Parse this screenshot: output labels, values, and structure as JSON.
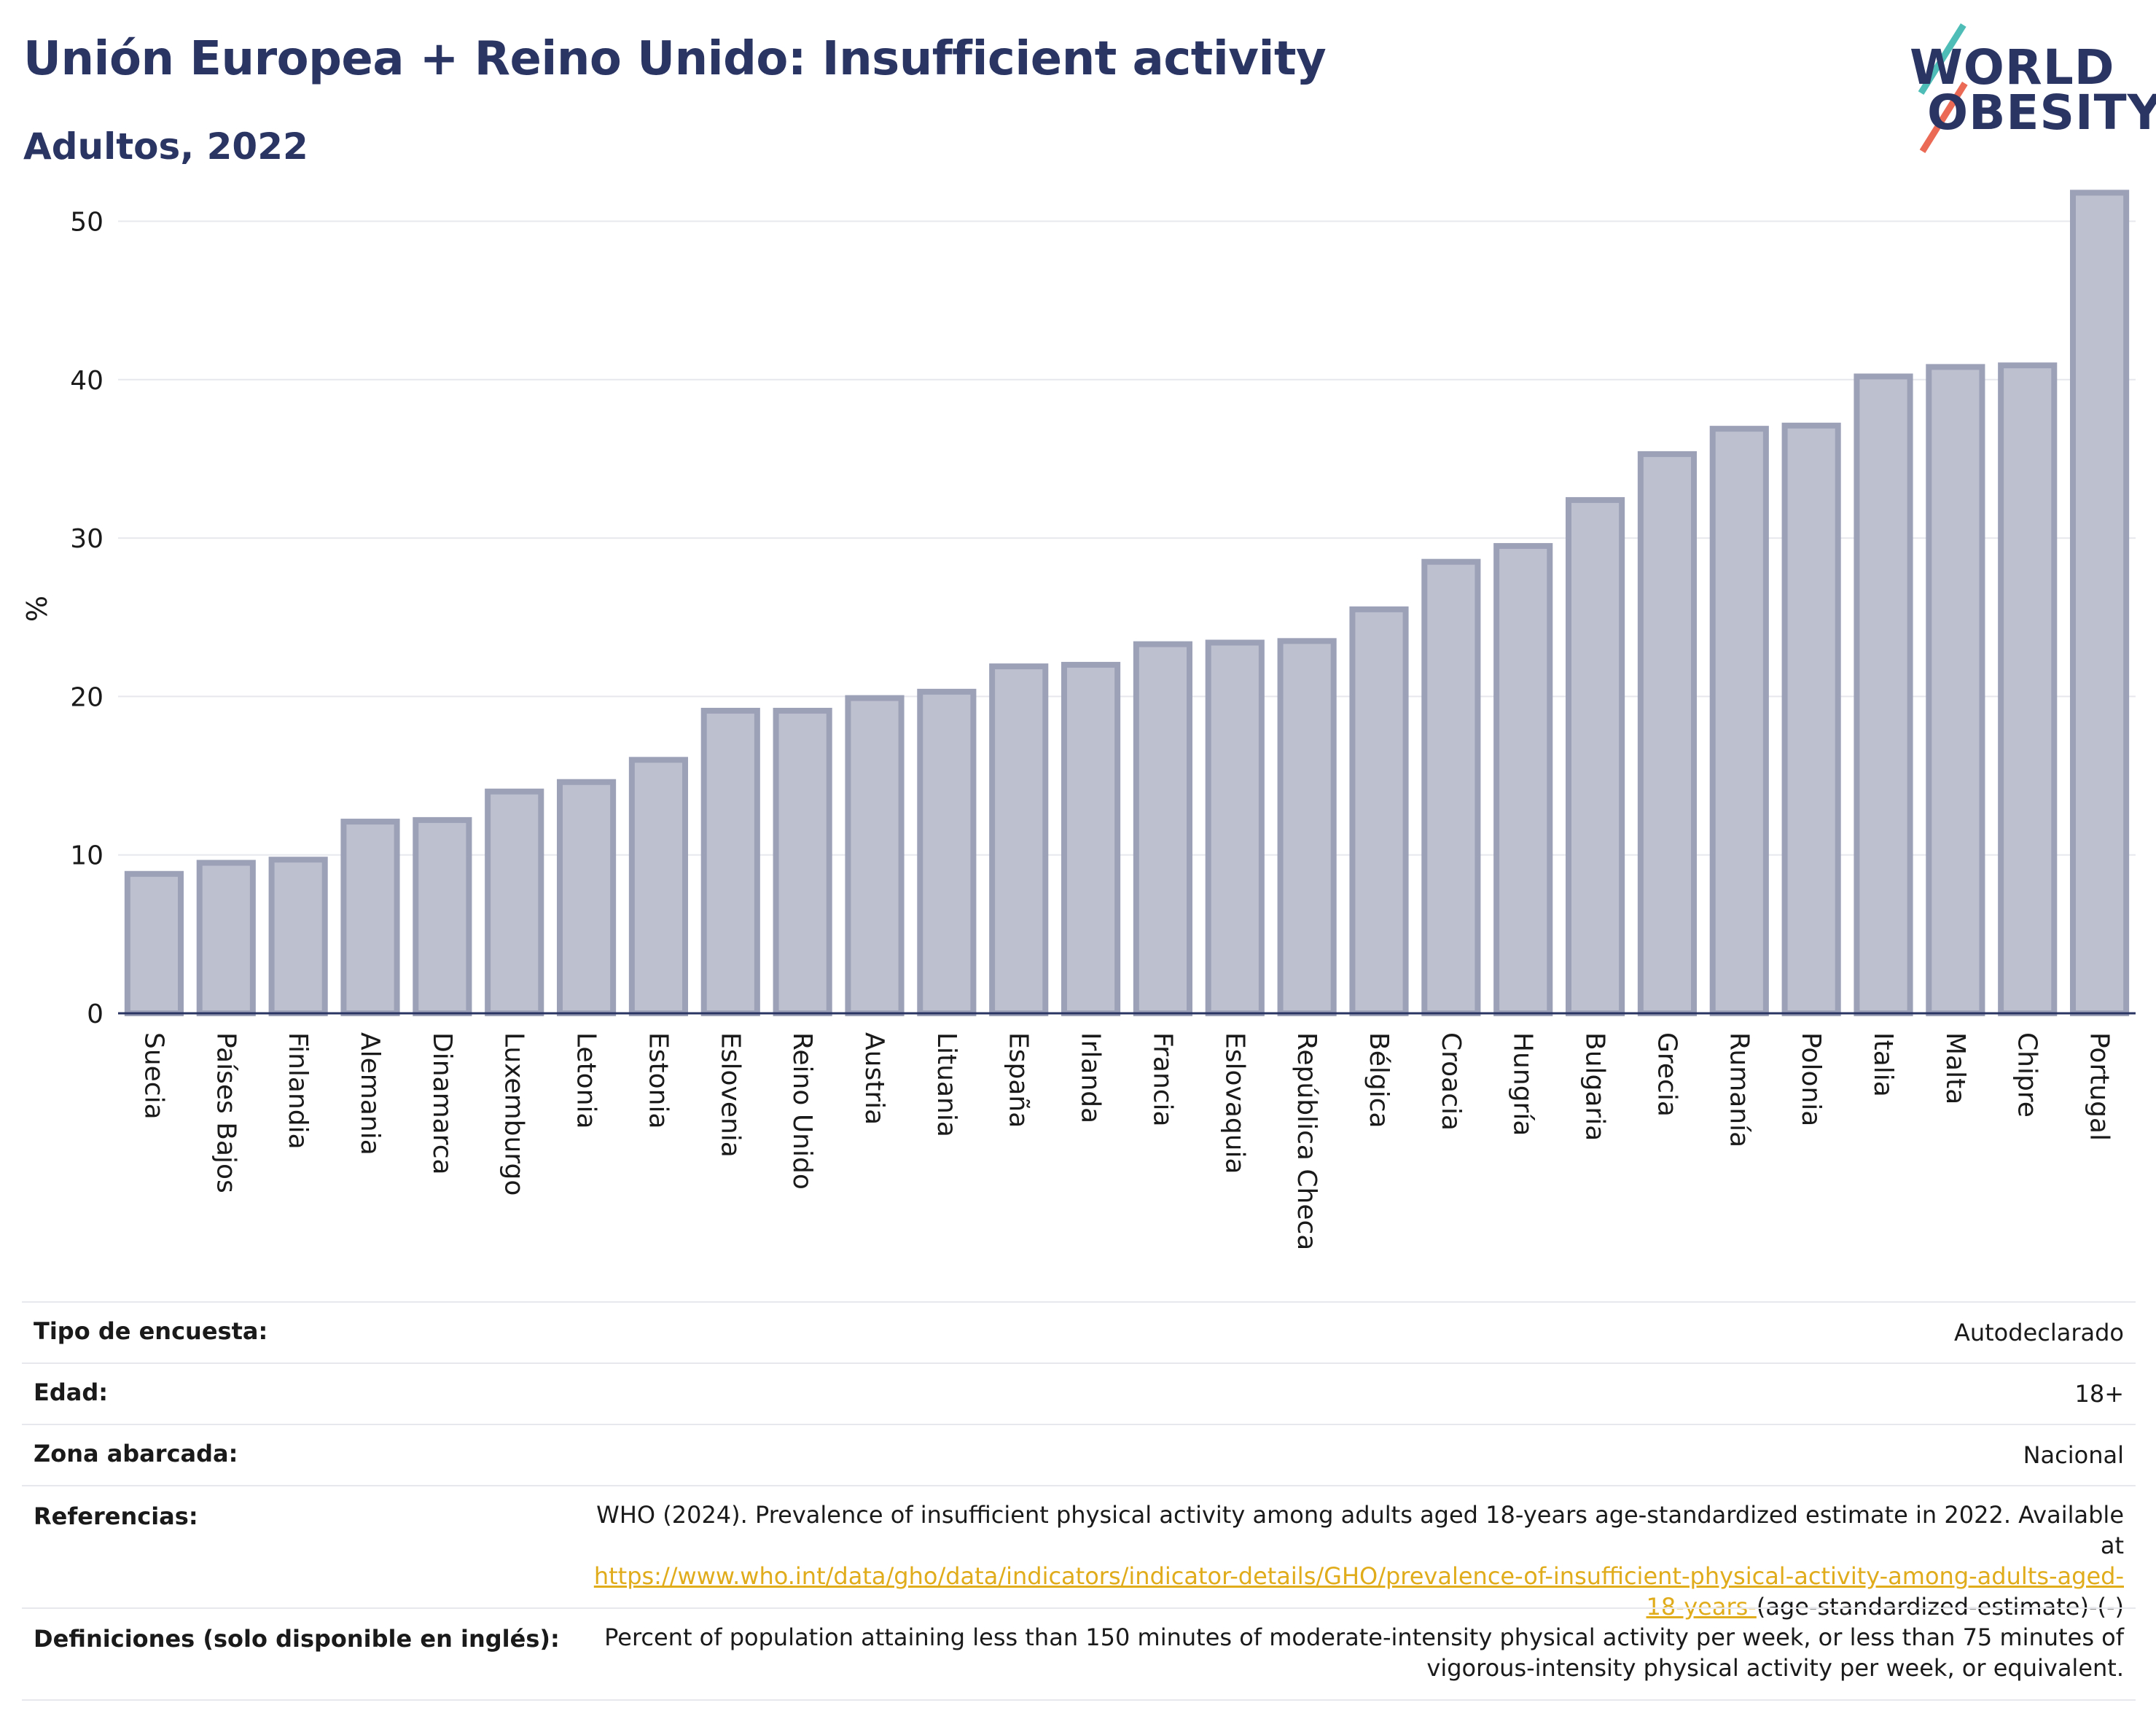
{
  "header": {
    "title": "Unión Europea + Reino Unido: Insufficient activity",
    "subtitle": "Adultos, 2022"
  },
  "logo": {
    "line1": "WORLD",
    "line2": "OBESITY",
    "accent_teal": "#4fbdb7",
    "accent_coral": "#ea6a55"
  },
  "colors": {
    "bar_fill": "#bdc0ce",
    "bar_stroke": "#9da1b8",
    "text_dark": "#2b3563",
    "grid": "#e6e8ee"
  },
  "chart_data": {
    "type": "bar",
    "ylabel": "%",
    "xlabel": "",
    "ylim": [
      0,
      52
    ],
    "yticks": [
      0,
      10,
      20,
      30,
      40,
      50
    ],
    "grid": true,
    "categories": [
      "Suecia",
      "Países Bajos",
      "Finlandia",
      "Alemania",
      "Dinamarca",
      "Luxemburgo",
      "Letonia",
      "Estonia",
      "Eslovenia",
      "Reino Unido",
      "Austria",
      "Lituania",
      "España",
      "Irlanda",
      "Francia",
      "Eslovaquia",
      "República Checa",
      "Bélgica",
      "Croacia",
      "Hungría",
      "Bulgaria",
      "Grecia",
      "Rumanía",
      "Polonia",
      "Italia",
      "Malta",
      "Chipre",
      "Portugal"
    ],
    "values": [
      8.8,
      9.5,
      9.7,
      12.1,
      12.2,
      14.0,
      14.6,
      16.0,
      19.1,
      19.1,
      19.9,
      20.3,
      21.9,
      22.0,
      23.3,
      23.4,
      23.5,
      25.5,
      28.5,
      29.5,
      32.4,
      35.3,
      36.9,
      37.1,
      40.2,
      40.8,
      40.9,
      51.8
    ]
  },
  "meta": {
    "survey_label": "Tipo de encuesta:",
    "survey_value": "Autodeclarado",
    "age_label": "Edad:",
    "age_value": "18+",
    "area_label": "Zona abarcada:",
    "area_value": "Nacional",
    "refs_label": "Referencias:",
    "refs_text": "WHO (2024). Prevalence of insufficient physical activity among adults aged 18-years age-standardized estimate in 2022. Available at",
    "refs_link_1": "https://www.who.int/data/gho/data/indicators/indicator-details/GHO/prevalence-of-insufficient-physical-activity-among-adults-aged-",
    "refs_link_2": "18-years-",
    "refs_tail": "(age-standardized-estimate)-(-)",
    "defs_label": "Definiciones (solo disponible en inglés):",
    "defs_line_1": "Percent of population attaining less than 150 minutes of moderate-intensity physical activity per week, or less than 75 minutes of",
    "defs_line_2": "vigorous-intensity physical activity per week, or equivalent."
  }
}
